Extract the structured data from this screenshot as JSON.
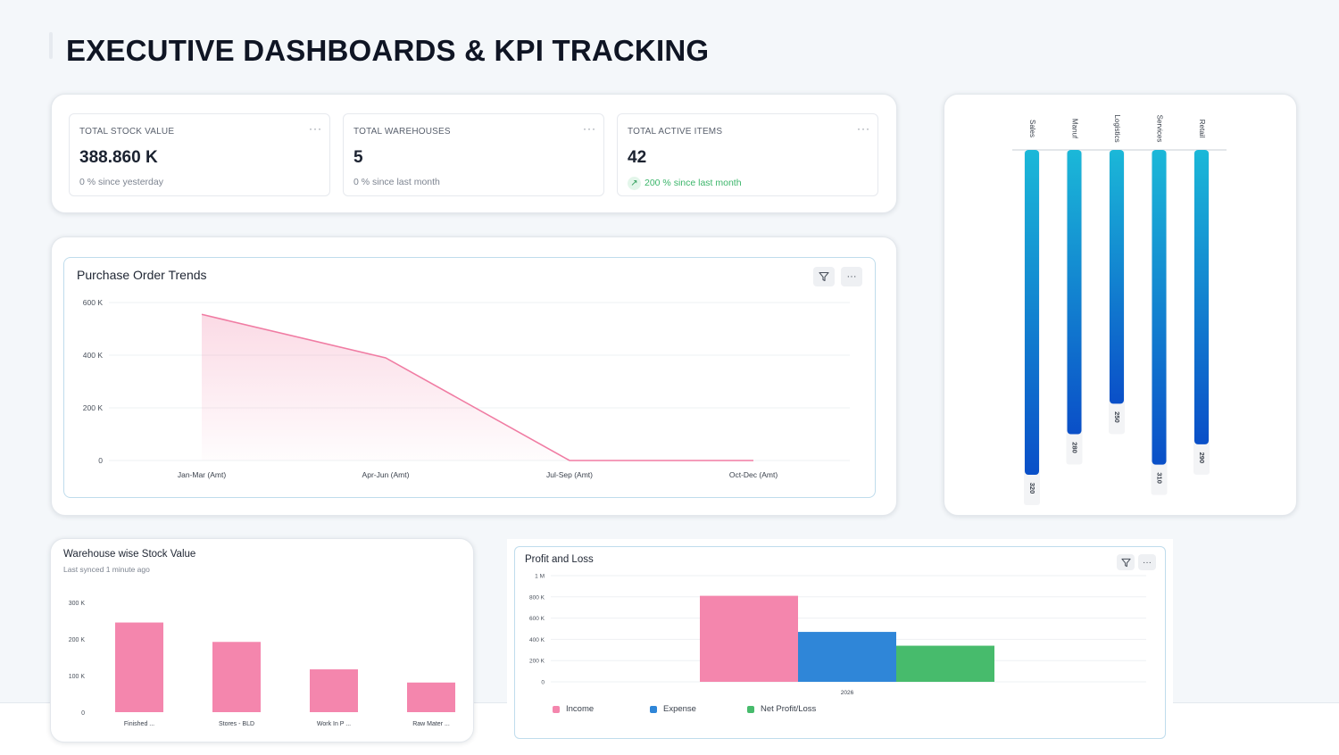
{
  "page": {
    "title": "EXECUTIVE DASHBOARDS & KPI TRACKING"
  },
  "kpis": [
    {
      "label": "TOTAL STOCK VALUE",
      "value": "388.860 K",
      "sub": "0 % since yesterday"
    },
    {
      "label": "TOTAL WAREHOUSES",
      "value": "5",
      "sub": "0 % since last month"
    },
    {
      "label": "TOTAL ACTIVE ITEMS",
      "value": "42",
      "sub": "200 % since last month",
      "trend": "up"
    }
  ],
  "kpi_menu_label": "···",
  "icons": {
    "filter": "filter-icon",
    "more": "more-icon",
    "trend_up": "arrow-up-right-icon"
  },
  "colors": {
    "pink": "#f486ad",
    "blue_top": "#1bb8d8",
    "blue_bottom": "#0a4fc8",
    "expense": "#2f86d8",
    "net": "#47bb6c"
  },
  "purchase_order": {
    "title": "Purchase Order Trends"
  },
  "warehouse": {
    "title": "Warehouse wise Stock Value",
    "subtitle": "Last synced 1 minute ago"
  },
  "profit_loss": {
    "title": "Profit and Loss",
    "legend": [
      "Income",
      "Expense",
      "Net Profit/Loss"
    ]
  },
  "chart_data": [
    {
      "id": "purchase_order_trends",
      "type": "area",
      "title": "Purchase Order Trends",
      "categories": [
        "Jan-Mar (Amt)",
        "Apr-Jun (Amt)",
        "Jul-Sep (Amt)",
        "Oct-Dec (Amt)"
      ],
      "values": [
        555000,
        390000,
        0,
        0
      ],
      "yticks": [
        "0",
        "200 K",
        "400 K",
        "600 K"
      ],
      "ylim": [
        0,
        600000
      ],
      "grid": true,
      "color": "#f07ca3"
    },
    {
      "id": "department_bars",
      "type": "bar",
      "orientation": "vertical-hanging",
      "categories": [
        "Sales",
        "Manuf",
        "Logistics",
        "Services",
        "Retail"
      ],
      "values": [
        320,
        280,
        250,
        310,
        290
      ],
      "ylim": [
        0,
        320
      ]
    },
    {
      "id": "warehouse_stock",
      "type": "bar",
      "title": "Warehouse wise Stock Value",
      "categories": [
        "Finished ...",
        "Stores - BLD",
        "Work In P ...",
        "Raw Mater ..."
      ],
      "values": [
        245000,
        192000,
        117000,
        81000
      ],
      "yticks": [
        "0",
        "100 K",
        "200 K",
        "300 K"
      ],
      "ylim": [
        0,
        300000
      ],
      "color": "#f486ad"
    },
    {
      "id": "profit_and_loss",
      "type": "bar",
      "title": "Profit and Loss",
      "categories": [
        "2026"
      ],
      "series": [
        {
          "name": "Income",
          "values": [
            810000
          ],
          "color": "#f486ad"
        },
        {
          "name": "Expense",
          "values": [
            470000
          ],
          "color": "#2f86d8"
        },
        {
          "name": "Net Profit/Loss",
          "values": [
            340000
          ],
          "color": "#47bb6c"
        }
      ],
      "yticks": [
        "0",
        "200 K",
        "400 K",
        "600 K",
        "800 K",
        "1 M"
      ],
      "ylim": [
        0,
        1000000
      ]
    }
  ]
}
